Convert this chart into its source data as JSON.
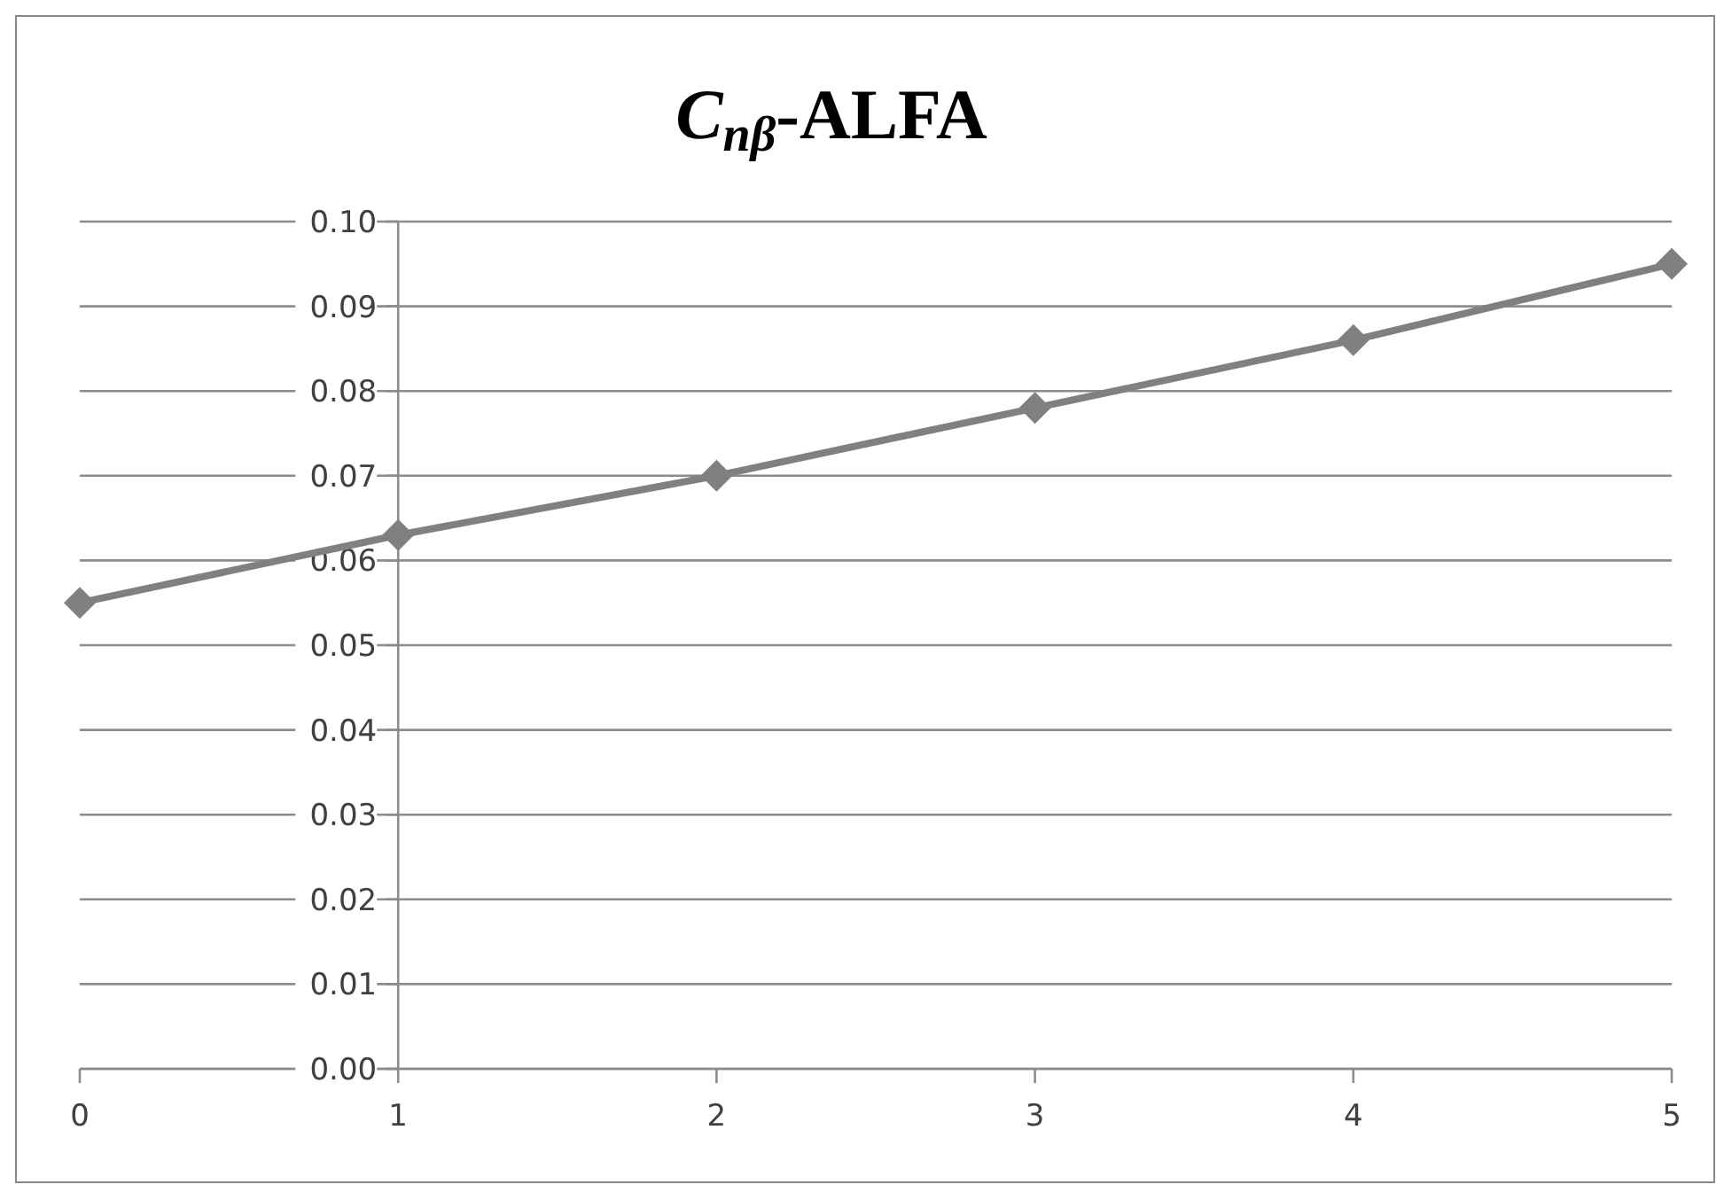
{
  "chart_data": {
    "type": "line",
    "title": "C$_{nβ}$-ALFA",
    "x": [
      0,
      1,
      2,
      3,
      4,
      5
    ],
    "series": [
      {
        "color": "#808080",
        "values": [
          0.055,
          0.063,
          0.07,
          0.078,
          0.086,
          0.095
        ]
      }
    ],
    "xlim": [
      0,
      5
    ],
    "xticks": [
      0,
      1,
      2,
      3,
      4,
      5
    ],
    "ylim": [
      0,
      0.1
    ],
    "yticks": [
      {
        "value": 0,
        "label": "0.00"
      },
      {
        "value": 0.01,
        "label": "0.01"
      },
      {
        "value": 0.02,
        "label": "0.02"
      },
      {
        "value": 0.03,
        "label": "0.03"
      },
      {
        "value": 0.04,
        "label": "0.04"
      },
      {
        "value": 0.05,
        "label": "0.05"
      },
      {
        "value": 0.06,
        "label": "0.06"
      },
      {
        "value": 0.07,
        "label": "0.07"
      },
      {
        "value": 0.08,
        "label": "0.08"
      },
      {
        "value": 0.09,
        "label": "0.09"
      },
      {
        "value": 0.1,
        "label": "0.10"
      }
    ],
    "grid": "y",
    "marker": "diamond",
    "line_style": "solid"
  }
}
